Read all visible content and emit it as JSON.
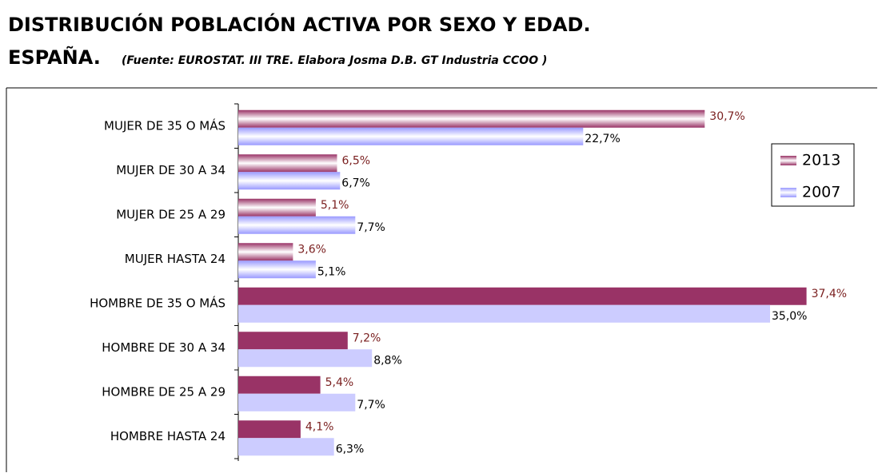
{
  "chart_data": {
    "type": "hbar",
    "title": [
      "DISTRIBUCIÓN POBLACIÓN ACTIVA POR SEXO Y EDAD.",
      "ESPAÑA."
    ],
    "subtitle": "(Fuente: EUROSTAT. III TRE. Elabora Josma D.B. GT Industria CCOO )",
    "categories": [
      "MUJER DE 35 O MÁS",
      "MUJER DE 30 A 34",
      "MUJER DE 25 A 29",
      "MUJER HASTA 24",
      "HOMBRE DE 35 O MÁS",
      "HOMBRE DE 30 A 34",
      "HOMBRE DE 25 A 29",
      "HOMBRE HASTA 24"
    ],
    "series": [
      {
        "name": "2013",
        "color": "#993366",
        "values": [
          30.7,
          6.5,
          5.1,
          3.6,
          37.4,
          7.2,
          5.4,
          4.1
        ],
        "value_labels": [
          "30,7%",
          "6,5%",
          "5,1%",
          "3,6%",
          "37,4%",
          "7,2%",
          "5,4%",
          "4,1%"
        ]
      },
      {
        "name": "2007",
        "color": "#ccccff",
        "values": [
          22.7,
          6.7,
          7.7,
          5.1,
          35.0,
          8.8,
          7.7,
          6.3
        ],
        "value_labels": [
          "22,7%",
          "6,7%",
          "7,7%",
          "5,1%",
          "35,0%",
          "8,8%",
          "7,7%",
          "6,3%"
        ]
      }
    ],
    "xlim": [
      0,
      40
    ],
    "legend": "right"
  }
}
